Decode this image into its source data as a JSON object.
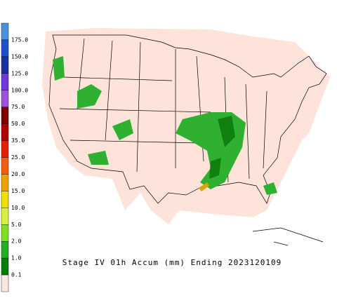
{
  "legend": {
    "labels": [
      "175.0",
      "150.0",
      "125.0",
      "100.0",
      "75.0",
      "50.0",
      "35.0",
      "25.0",
      "20.0",
      "15.0",
      "10.0",
      "5.0",
      "2.0",
      "1.0",
      "0.1"
    ],
    "colors": [
      "#4a90e0",
      "#2050c8",
      "#1830a0",
      "#7038d8",
      "#a050e0",
      "#800000",
      "#b00000",
      "#e02000",
      "#f06010",
      "#f0a000",
      "#f0e000",
      "#d8f040",
      "#80e020",
      "#20b020",
      "#008000",
      "#f8e8e0"
    ]
  },
  "caption": "Stage IV 01h Accum (mm) Ending 2023120109"
}
